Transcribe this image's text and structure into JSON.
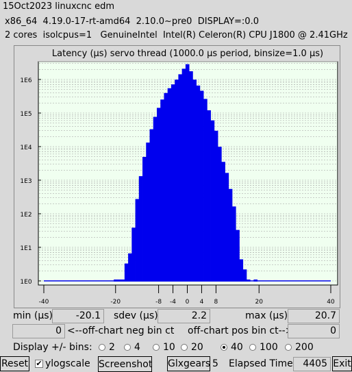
{
  "header": {
    "line1": "15Oct2023 linuxcnc edm",
    "line2": "x86_64  4.19.0-17-rt-amd64  2.10.0~pre0  DISPLAY=:0.0",
    "line3": "2 cores  isolcpus=1   GenuineIntel  Intel(R) Celeron(R) CPU J1800 @ 2.41GHz"
  },
  "chart_data": {
    "type": "bar",
    "title": "Latency (µs) servo thread (1000.0 µs period, binsize=1.0 µs)",
    "xlim": [
      -40,
      40
    ],
    "x_ticks": [
      -40,
      -20,
      -8,
      -4,
      0,
      4,
      8,
      20,
      40
    ],
    "y_scale": "log",
    "y_ticks": [
      "1E0",
      "1E1",
      "1E2",
      "1E3",
      "1E4",
      "1E5",
      "1E6"
    ],
    "colors": {
      "bars": "#0000ee",
      "plot_bg": "#f0fff0",
      "grid": "#9a9a9a"
    },
    "bins": [
      {
        "x": -20,
        "y": 1
      },
      {
        "x": -19,
        "y": 1
      },
      {
        "x": -18,
        "y": 1
      },
      {
        "x": -17,
        "y": 3
      },
      {
        "x": -16,
        "y": 6
      },
      {
        "x": -15,
        "y": 35
      },
      {
        "x": -14,
        "y": 250
      },
      {
        "x": -13,
        "y": 1200
      },
      {
        "x": -12,
        "y": 4500
      },
      {
        "x": -11,
        "y": 12000
      },
      {
        "x": -10,
        "y": 30000
      },
      {
        "x": -9,
        "y": 70000
      },
      {
        "x": -8,
        "y": 130000
      },
      {
        "x": -7,
        "y": 230000
      },
      {
        "x": -6,
        "y": 360000
      },
      {
        "x": -5,
        "y": 500000
      },
      {
        "x": -4,
        "y": 650000
      },
      {
        "x": -3,
        "y": 900000
      },
      {
        "x": -2,
        "y": 1300000
      },
      {
        "x": -1,
        "y": 1900000
      },
      {
        "x": 0,
        "y": 2600000
      },
      {
        "x": 1,
        "y": 1600000
      },
      {
        "x": 2,
        "y": 900000
      },
      {
        "x": 3,
        "y": 600000
      },
      {
        "x": 4,
        "y": 420000
      },
      {
        "x": 5,
        "y": 240000
      },
      {
        "x": 6,
        "y": 110000
      },
      {
        "x": 7,
        "y": 55000
      },
      {
        "x": 8,
        "y": 27000
      },
      {
        "x": 9,
        "y": 9000
      },
      {
        "x": 10,
        "y": 3200
      },
      {
        "x": 11,
        "y": 1500
      },
      {
        "x": 12,
        "y": 500
      },
      {
        "x": 13,
        "y": 150
      },
      {
        "x": 14,
        "y": 30
      },
      {
        "x": 15,
        "y": 4
      },
      {
        "x": 16,
        "y": 2
      },
      {
        "x": 17,
        "y": 1
      },
      {
        "x": 18,
        "y": 0
      },
      {
        "x": 19,
        "y": 1
      }
    ]
  },
  "stats": {
    "min_label": "min (µs)",
    "min_value": "-20.1",
    "sdev_label": "sdev (µs)",
    "sdev_value": "2.2",
    "max_label": "max (µs)",
    "max_value": "20.7",
    "neg_value": "0",
    "neg_label": "<--off-chart neg bin ct",
    "pos_label": "off-chart pos bin ct-->",
    "pos_value": "0"
  },
  "bins_selector": {
    "label": "Display +/- bins:",
    "options": [
      "2",
      "4",
      "10",
      "20",
      "40",
      "100",
      "200"
    ],
    "selected": "40"
  },
  "toolbar": {
    "reset": "Reset",
    "ylogscale": "ylogscale",
    "ylogscale_checked": true,
    "screenshot": "Screenshot",
    "glxgears": "Glxgears",
    "glxgears_count": "5",
    "elapsed_label": "Elapsed Time:",
    "elapsed_value": "4405",
    "exit": "Exit"
  }
}
